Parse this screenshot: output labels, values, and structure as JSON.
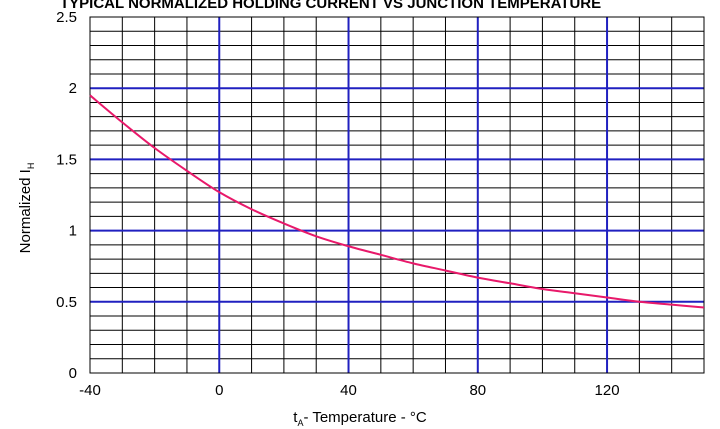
{
  "chart_data": {
    "type": "line",
    "title": "TYPICAL NORMALIZED HOLDING CURRENT VS JUNCTION  TEMPERATURE",
    "xlabel": {
      "main": "t",
      "sub": "A",
      "rest": "- Temperature - °C"
    },
    "ylabel": {
      "main": "Normalized I",
      "sub": "H"
    },
    "xlim": [
      -40,
      150
    ],
    "ylim": [
      0,
      2.5
    ],
    "x_ticks": [
      -40,
      0,
      40,
      80,
      120
    ],
    "x_tick_labels": [
      "-40",
      "0",
      "40",
      "80",
      "120"
    ],
    "y_ticks": [
      0,
      0.5,
      1,
      1.5,
      2,
      2.5
    ],
    "y_tick_labels": [
      "0",
      "0.5",
      "1",
      "1.5",
      "2",
      "2.5"
    ],
    "minor_x_step": 10,
    "minor_y_step": 0.1,
    "grid": true,
    "colors": {
      "major_grid": "#2020c0",
      "minor_grid": "#000000",
      "curve": "#e8196a"
    },
    "series": [
      {
        "x": [
          -40,
          -30,
          -20,
          -10,
          0,
          10,
          20,
          30,
          40,
          50,
          60,
          70,
          80,
          90,
          100,
          110,
          120,
          130,
          140,
          150
        ],
        "values": [
          1.95,
          1.76,
          1.58,
          1.42,
          1.27,
          1.15,
          1.05,
          0.96,
          0.89,
          0.83,
          0.77,
          0.72,
          0.67,
          0.63,
          0.59,
          0.56,
          0.53,
          0.5,
          0.48,
          0.46
        ]
      }
    ]
  }
}
